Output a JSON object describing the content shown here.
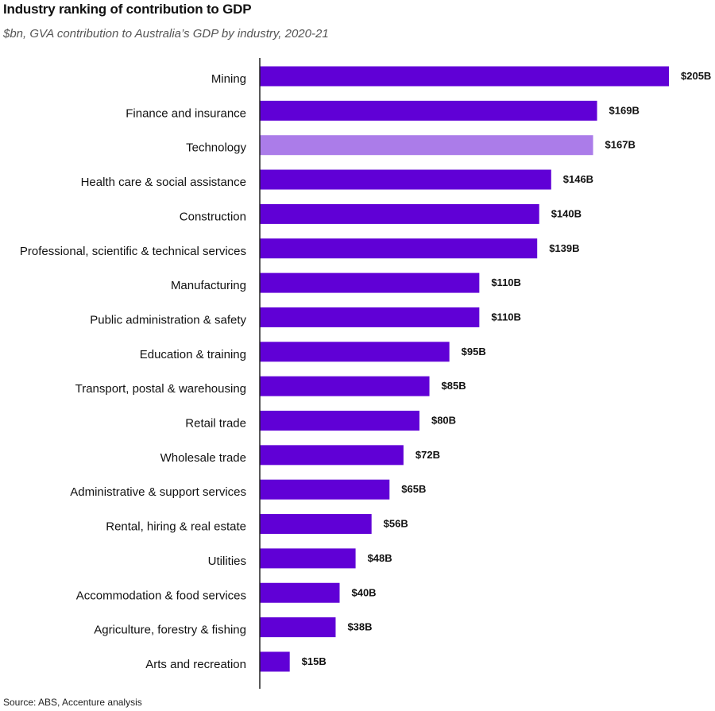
{
  "chart_data": {
    "type": "bar",
    "orientation": "horizontal",
    "title": "Industry ranking of contribution to GDP",
    "subtitle": "$bn, GVA contribution to Australia’s GDP by industry, 2020-21",
    "source": "Source: ABS, Accenture analysis",
    "categories": [
      "Mining",
      "Finance and insurance",
      "Technology",
      "Health care & social assistance",
      "Construction",
      "Professional, scientific & technical services",
      "Manufacturing",
      "Public administration & safety",
      "Education & training",
      "Transport, postal & warehousing",
      "Retail trade",
      "Wholesale trade",
      "Administrative & support services",
      "Rental, hiring & real estate",
      "Utilities",
      "Accommodation & food services",
      "Agriculture, forestry & fishing",
      "Arts and recreation"
    ],
    "values": [
      205,
      169,
      167,
      146,
      140,
      139,
      110,
      110,
      95,
      85,
      80,
      72,
      65,
      56,
      48,
      40,
      38,
      15
    ],
    "value_labels": [
      "$205B",
      "$169B",
      "$167B",
      "$146B",
      "$140B",
      "$139B",
      "$110B",
      "$110B",
      "$95B",
      "$85B",
      "$80B",
      "$72B",
      "$65B",
      "$56B",
      "$48B",
      "$40B",
      "$38B",
      "$15B"
    ],
    "highlight_category": "Technology",
    "xlim": [
      0,
      205
    ],
    "grid": false,
    "legend": "none",
    "colors": {
      "bar": "#6000d6",
      "highlight": "#ab7ce9",
      "axis": "#222222"
    }
  }
}
